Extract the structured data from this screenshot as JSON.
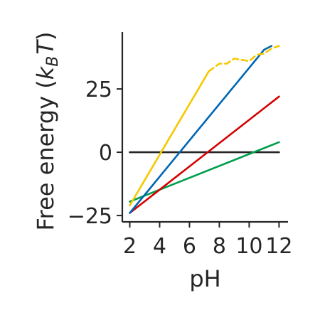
{
  "chart_data": {
    "type": "line",
    "title": "",
    "xlabel": "pH",
    "ylabel_main": "Free energy (",
    "ylabel_var": "k",
    "ylabel_sub": "B",
    "ylabel_var2": "T",
    "ylabel_end": ")",
    "xlim": [
      1.5,
      12.6
    ],
    "ylim": [
      -27.5,
      47.5
    ],
    "xticks": [
      2,
      4,
      6,
      8,
      10,
      12
    ],
    "yticks": [
      -25,
      0,
      25
    ],
    "xtick_labels": [
      "2",
      "4",
      "6",
      "8",
      "10",
      "12"
    ],
    "ytick_labels": [
      "−25",
      "0",
      "25"
    ],
    "grid": false,
    "legend": "none",
    "series": [
      {
        "color": "#262626",
        "style": "solid",
        "points": [
          [
            2,
            0
          ],
          [
            12,
            0
          ]
        ]
      },
      {
        "color": "#009e4d",
        "style": "solid",
        "points": [
          [
            2,
            -19.5
          ],
          [
            12,
            4
          ]
        ]
      },
      {
        "color": "#d40000",
        "style": "solid",
        "points": [
          [
            2,
            -24
          ],
          [
            12,
            22
          ]
        ]
      },
      {
        "color": "#0066b3",
        "style": "solid",
        "points": [
          [
            2,
            -24
          ],
          [
            11,
            40.5
          ],
          [
            11.5,
            42
          ]
        ]
      },
      {
        "color": "#f5c800",
        "style": "solid",
        "points": [
          [
            2,
            -21
          ],
          [
            7.3,
            32
          ]
        ]
      },
      {
        "color": "#f5c800",
        "style": "dashed",
        "points": [
          [
            7.3,
            32
          ],
          [
            8,
            35
          ],
          [
            8.5,
            35
          ],
          [
            9,
            37
          ],
          [
            9.5,
            36.5
          ],
          [
            10,
            36
          ],
          [
            10.5,
            38.5
          ],
          [
            11,
            39
          ],
          [
            11.5,
            41
          ],
          [
            12,
            42
          ]
        ]
      }
    ]
  }
}
